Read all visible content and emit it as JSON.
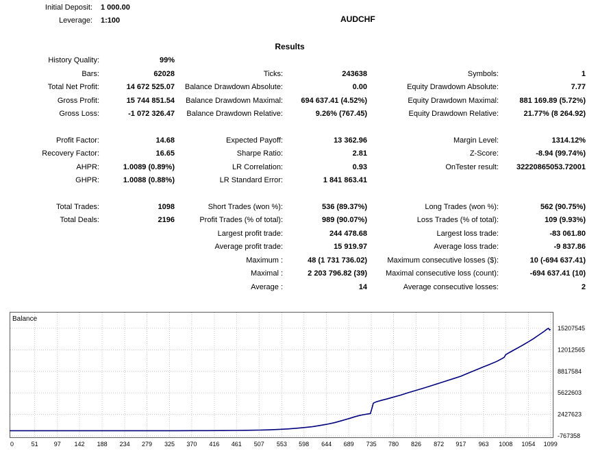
{
  "header": {
    "initial_deposit_label": "Initial Deposit:",
    "initial_deposit_value": "1 000.00",
    "leverage_label": "Leverage:",
    "leverage_value": "1:100",
    "symbol": "AUDCHF",
    "results_title": "Results"
  },
  "stats": {
    "rows": [
      {
        "l1": "History Quality:",
        "v1": "99%",
        "l2": "",
        "v2": "",
        "l3": "",
        "v3": ""
      },
      {
        "l1": "Bars:",
        "v1": "62028",
        "l2": "Ticks:",
        "v2": "243638",
        "l3": "Symbols:",
        "v3": "1"
      },
      {
        "l1": "Total Net Profit:",
        "v1": "14 672 525.07",
        "l2": "Balance Drawdown Absolute:",
        "v2": "0.00",
        "l3": "Equity Drawdown Absolute:",
        "v3": "7.77"
      },
      {
        "l1": "Gross Profit:",
        "v1": "15 744 851.54",
        "l2": "Balance Drawdown Maximal:",
        "v2": "694 637.41 (4.52%)",
        "l3": "Equity Drawdown Maximal:",
        "v3": "881 169.89 (5.72%)"
      },
      {
        "l1": "Gross Loss:",
        "v1": "-1 072 326.47",
        "l2": "Balance Drawdown Relative:",
        "v2": "9.26% (767.45)",
        "l3": "Equity Drawdown Relative:",
        "v3": "21.77% (8 264.92)"
      },
      {
        "spacer": true
      },
      {
        "l1": "Profit Factor:",
        "v1": "14.68",
        "l2": "Expected Payoff:",
        "v2": "13 362.96",
        "l3": "Margin Level:",
        "v3": "1314.12%"
      },
      {
        "l1": "Recovery Factor:",
        "v1": "16.65",
        "l2": "Sharpe Ratio:",
        "v2": "2.81",
        "l3": "Z-Score:",
        "v3": "-8.94 (99.74%)"
      },
      {
        "l1": "AHPR:",
        "v1": "1.0089 (0.89%)",
        "l2": "LR Correlation:",
        "v2": "0.93",
        "l3": "OnTester result:",
        "v3": "32220865053.72001"
      },
      {
        "l1": "GHPR:",
        "v1": "1.0088 (0.88%)",
        "l2": "LR Standard Error:",
        "v2": "1 841 863.41",
        "l3": "",
        "v3": ""
      },
      {
        "spacer": true
      },
      {
        "l1": "Total Trades:",
        "v1": "1098",
        "l2": "Short Trades (won %):",
        "v2": "536 (89.37%)",
        "l3": "Long Trades (won %):",
        "v3": "562 (90.75%)"
      },
      {
        "l1": "Total Deals:",
        "v1": "2196",
        "l2": "Profit Trades (% of total):",
        "v2": "989 (90.07%)",
        "l3": "Loss Trades (% of total):",
        "v3": "109 (9.93%)"
      },
      {
        "l1": "",
        "v1": "",
        "l2": "Largest profit trade:",
        "v2": "244 478.68",
        "l3": "Largest loss trade:",
        "v3": "-83 061.80"
      },
      {
        "l1": "",
        "v1": "",
        "l2": "Average profit trade:",
        "v2": "15 919.97",
        "l3": "Average loss trade:",
        "v3": "-9 837.86"
      },
      {
        "l1": "",
        "v1": "",
        "l2": "Maximum :",
        "v2": "48 (1 731 736.02)",
        "l3": "Maximum consecutive losses ($):",
        "v3": "10 (-694 637.41)"
      },
      {
        "l1": "",
        "v1": "",
        "l2": "Maximal :",
        "v2": "2 203 796.82 (39)",
        "l3": "Maximal consecutive loss (count):",
        "v3": "-694 637.41 (10)"
      },
      {
        "l1": "",
        "v1": "",
        "l2": "Average :",
        "v2": "14",
        "l3": "Average consecutive losses:",
        "v3": "2"
      }
    ]
  },
  "chart_data": {
    "type": "line",
    "title": "Balance",
    "x_ticks": [
      0,
      51,
      97,
      142,
      188,
      234,
      279,
      325,
      370,
      416,
      461,
      507,
      553,
      598,
      644,
      689,
      735,
      780,
      826,
      872,
      917,
      963,
      1008,
      1054,
      1099
    ],
    "y_ticks": [
      15207545,
      12012565,
      8817584,
      5622603,
      2427623,
      -767358
    ],
    "x_range": [
      0,
      1105
    ],
    "y_range": [
      -767358,
      15207545
    ],
    "grid": true,
    "legend_position": "top-left-inside",
    "line_color": "#00007F",
    "grid_color": "#c6c6c6",
    "border_color": "#5a5a5a",
    "series": [
      {
        "name": "Balance",
        "points": [
          [
            0,
            1000
          ],
          [
            50,
            1100
          ],
          [
            100,
            1300
          ],
          [
            150,
            1700
          ],
          [
            200,
            2300
          ],
          [
            250,
            3200
          ],
          [
            300,
            5000
          ],
          [
            340,
            8000
          ],
          [
            370,
            12000
          ],
          [
            400,
            18000
          ],
          [
            430,
            28000
          ],
          [
            461,
            45000
          ],
          [
            480,
            62000
          ],
          [
            507,
            95000
          ],
          [
            525,
            130000
          ],
          [
            545,
            190000
          ],
          [
            565,
            270000
          ],
          [
            585,
            380000
          ],
          [
            598,
            470000
          ],
          [
            615,
            600000
          ],
          [
            630,
            780000
          ],
          [
            644,
            950000
          ],
          [
            660,
            1200000
          ],
          [
            675,
            1500000
          ],
          [
            689,
            1800000
          ],
          [
            700,
            2050000
          ],
          [
            710,
            2250000
          ],
          [
            720,
            2400000
          ],
          [
            728,
            2500000
          ],
          [
            733,
            2550000
          ],
          [
            736,
            3300000
          ],
          [
            739,
            4100000
          ],
          [
            745,
            4300000
          ],
          [
            755,
            4500000
          ],
          [
            768,
            4750000
          ],
          [
            780,
            5000000
          ],
          [
            795,
            5300000
          ],
          [
            810,
            5650000
          ],
          [
            826,
            6000000
          ],
          [
            840,
            6300000
          ],
          [
            855,
            6650000
          ],
          [
            872,
            7050000
          ],
          [
            885,
            7350000
          ],
          [
            900,
            7700000
          ],
          [
            917,
            8100000
          ],
          [
            930,
            8500000
          ],
          [
            945,
            8950000
          ],
          [
            963,
            9500000
          ],
          [
            975,
            9850000
          ],
          [
            990,
            10300000
          ],
          [
            1000,
            10700000
          ],
          [
            1005,
            10900000
          ],
          [
            1008,
            11300000
          ],
          [
            1015,
            11600000
          ],
          [
            1025,
            12000000
          ],
          [
            1040,
            12600000
          ],
          [
            1054,
            13200000
          ],
          [
            1065,
            13700000
          ],
          [
            1075,
            14200000
          ],
          [
            1085,
            14700000
          ],
          [
            1092,
            15100000
          ],
          [
            1095,
            15207545
          ],
          [
            1097,
            14950000
          ],
          [
            1099,
            15050000
          ]
        ]
      }
    ]
  }
}
